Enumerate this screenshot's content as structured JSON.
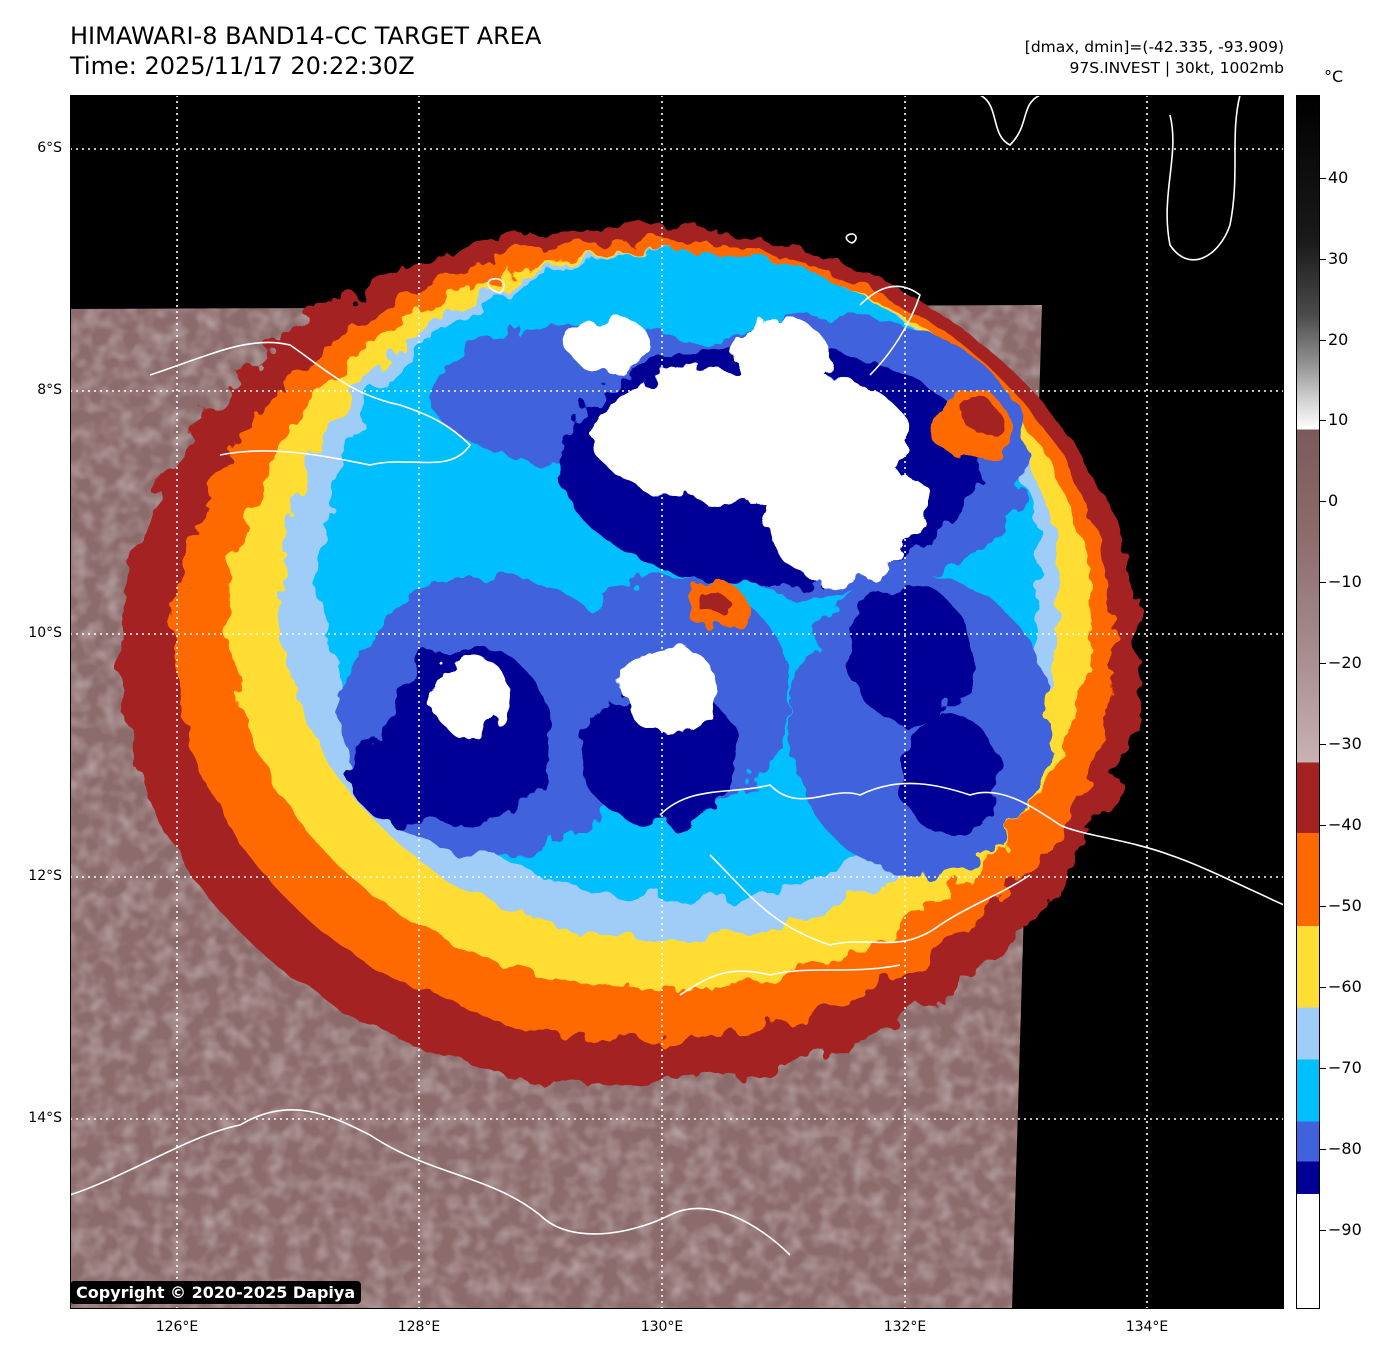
{
  "header": {
    "title_line1": "HIMAWARI-8 BAND14-CC TARGET AREA",
    "title_line2": "Time: 2025/11/17 20:22:30Z",
    "info_line1": "[dmax, dmin]=(-42.335, -93.909)",
    "info_line2": "97S.INVEST | 30kt, 1002mb"
  },
  "map": {
    "lat_labels": [
      "6°S",
      "8°S",
      "10°S",
      "12°S",
      "14°S"
    ],
    "lon_labels": [
      "126°E",
      "128°E",
      "130°E",
      "132°E",
      "134°E"
    ],
    "colors": {
      "background": "#000000",
      "warm": "#8c6b6b",
      "red": "#a52222",
      "orange": "#ff6a00",
      "yellow": "#ffdd33",
      "lightblue": "#a0cdf7",
      "cyan": "#00bfff",
      "blue": "#4062dd",
      "navy": "#000096",
      "white": "#ffffff"
    }
  },
  "colorbar": {
    "unit": "°C",
    "labels": [
      "40",
      "30",
      "20",
      "10",
      "0",
      "−10",
      "−20",
      "−30",
      "−40",
      "−50",
      "−60",
      "−70",
      "−80",
      "−90"
    ]
  },
  "copyright": "Copyright © 2020-2025 Dapiya"
}
